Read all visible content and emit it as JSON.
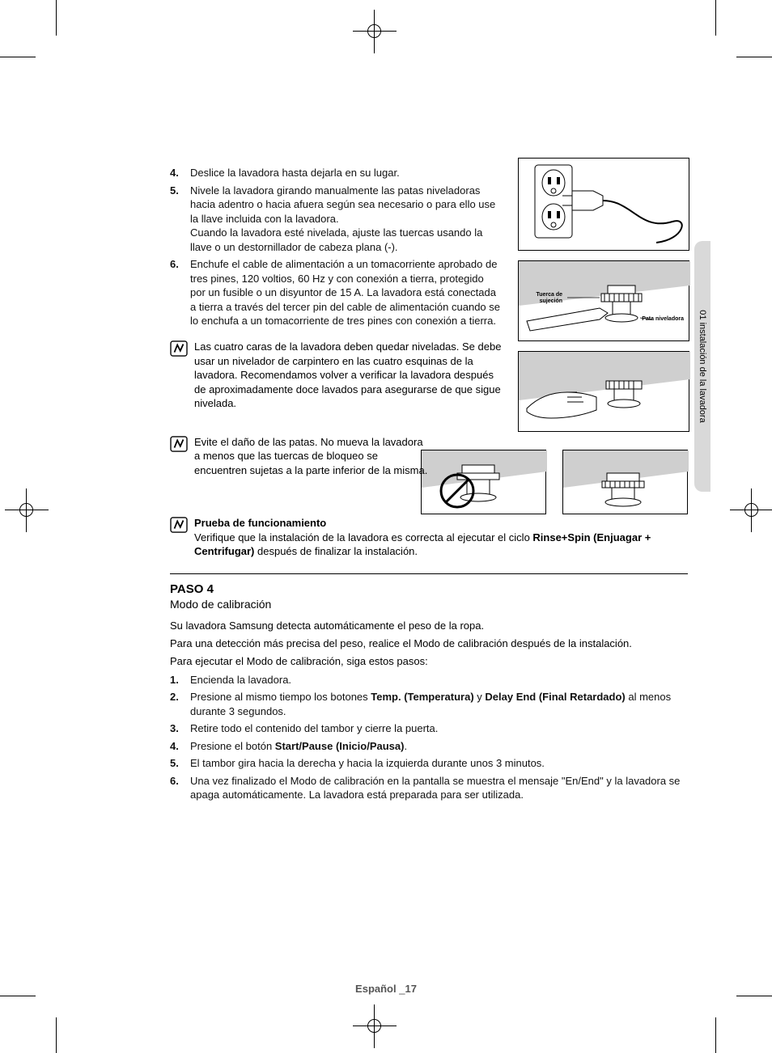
{
  "side_tab": "01 instalación de la lavadora",
  "upper_steps": [
    {
      "n": "4.",
      "text": "Deslice la lavadora hasta dejarla en su lugar."
    },
    {
      "n": "5.",
      "text": "Nivele la lavadora girando manualmente las patas niveladoras hacia adentro o hacia afuera según sea necesario o para ello use la llave incluida con la lavadora.\nCuando la lavadora esté nivelada, ajuste las tuercas usando la llave o un destornillador de cabeza plana (-)."
    },
    {
      "n": "6.",
      "text": "Enchufe el cable de alimentación a un tomacorriente aprobado de tres pines, 120 voltios, 60 Hz y con conexión a tierra, protegido por un fusible o un disyuntor de 15 A. La lavadora está conectada a tierra a través del tercer pin del cable de alimentación cuando se lo enchufa a un tomacorriente de tres pines con conexión a tierra."
    }
  ],
  "note1": "Las cuatro caras de la lavadora deben quedar niveladas. Se debe usar un nivelador de carpintero en las cuatro esquinas de la lavadora. Recomendamos volver a verificar la lavadora después de aproximadamente doce lavados para asegurarse de que sigue nivelada.",
  "note2": "Evite el daño de las patas. No mueva la lavadora a menos que las tuercas de bloqueo se encuentren sujetas a la parte inferior de la misma.",
  "note3_title": "Prueba de funcionamiento",
  "note3_pre": "Verifique que la instalación de la lavadora es correcta al ejecutar el ciclo ",
  "note3_bold1": "Rinse+Spin (Enjuagar + Centrifugar)",
  "note3_post": "  después de finalizar la instalación.",
  "step4_title": "PASO 4",
  "step4_sub": "Modo de calibración",
  "step4_p1": "Su lavadora Samsung detecta automáticamente el peso de la ropa.",
  "step4_p2": "Para una detección más precisa del peso, realice el Modo de calibración después de la instalación.",
  "step4_p3": "Para ejecutar el Modo de calibración, siga estos pasos:",
  "lower_steps": [
    {
      "n": "1.",
      "pre": "Encienda la lavadora."
    },
    {
      "n": "2.",
      "pre": "Presione al mismo tiempo los botones ",
      "b1": "Temp. (Temperatura)",
      "mid": " y ",
      "b2": "Delay End (Final Retardado)",
      "post": "  al menos durante 3 segundos."
    },
    {
      "n": "3.",
      "pre": "Retire todo el contenido del tambor y cierre la puerta."
    },
    {
      "n": "4.",
      "pre": "Presione el botón ",
      "b1": "Start/Pause (Inicio/Pausa)",
      "post": "."
    },
    {
      "n": "5.",
      "pre": "El tambor gira hacia la derecha y hacia la izquierda durante unos 3 minutos."
    },
    {
      "n": "6.",
      "pre": "Una vez finalizado el Modo de calibración en la pantalla se muestra el mensaje \"En/End\" y la lavadora se apaga automáticamente. La lavadora está preparada para ser utilizada."
    }
  ],
  "fig2_labels": {
    "lock_nut": "Tuerca de\nsujeción",
    "leveling_foot": "Pata niveladora"
  },
  "footer_lang": "Español",
  "footer_sep": " _",
  "footer_page": "17"
}
